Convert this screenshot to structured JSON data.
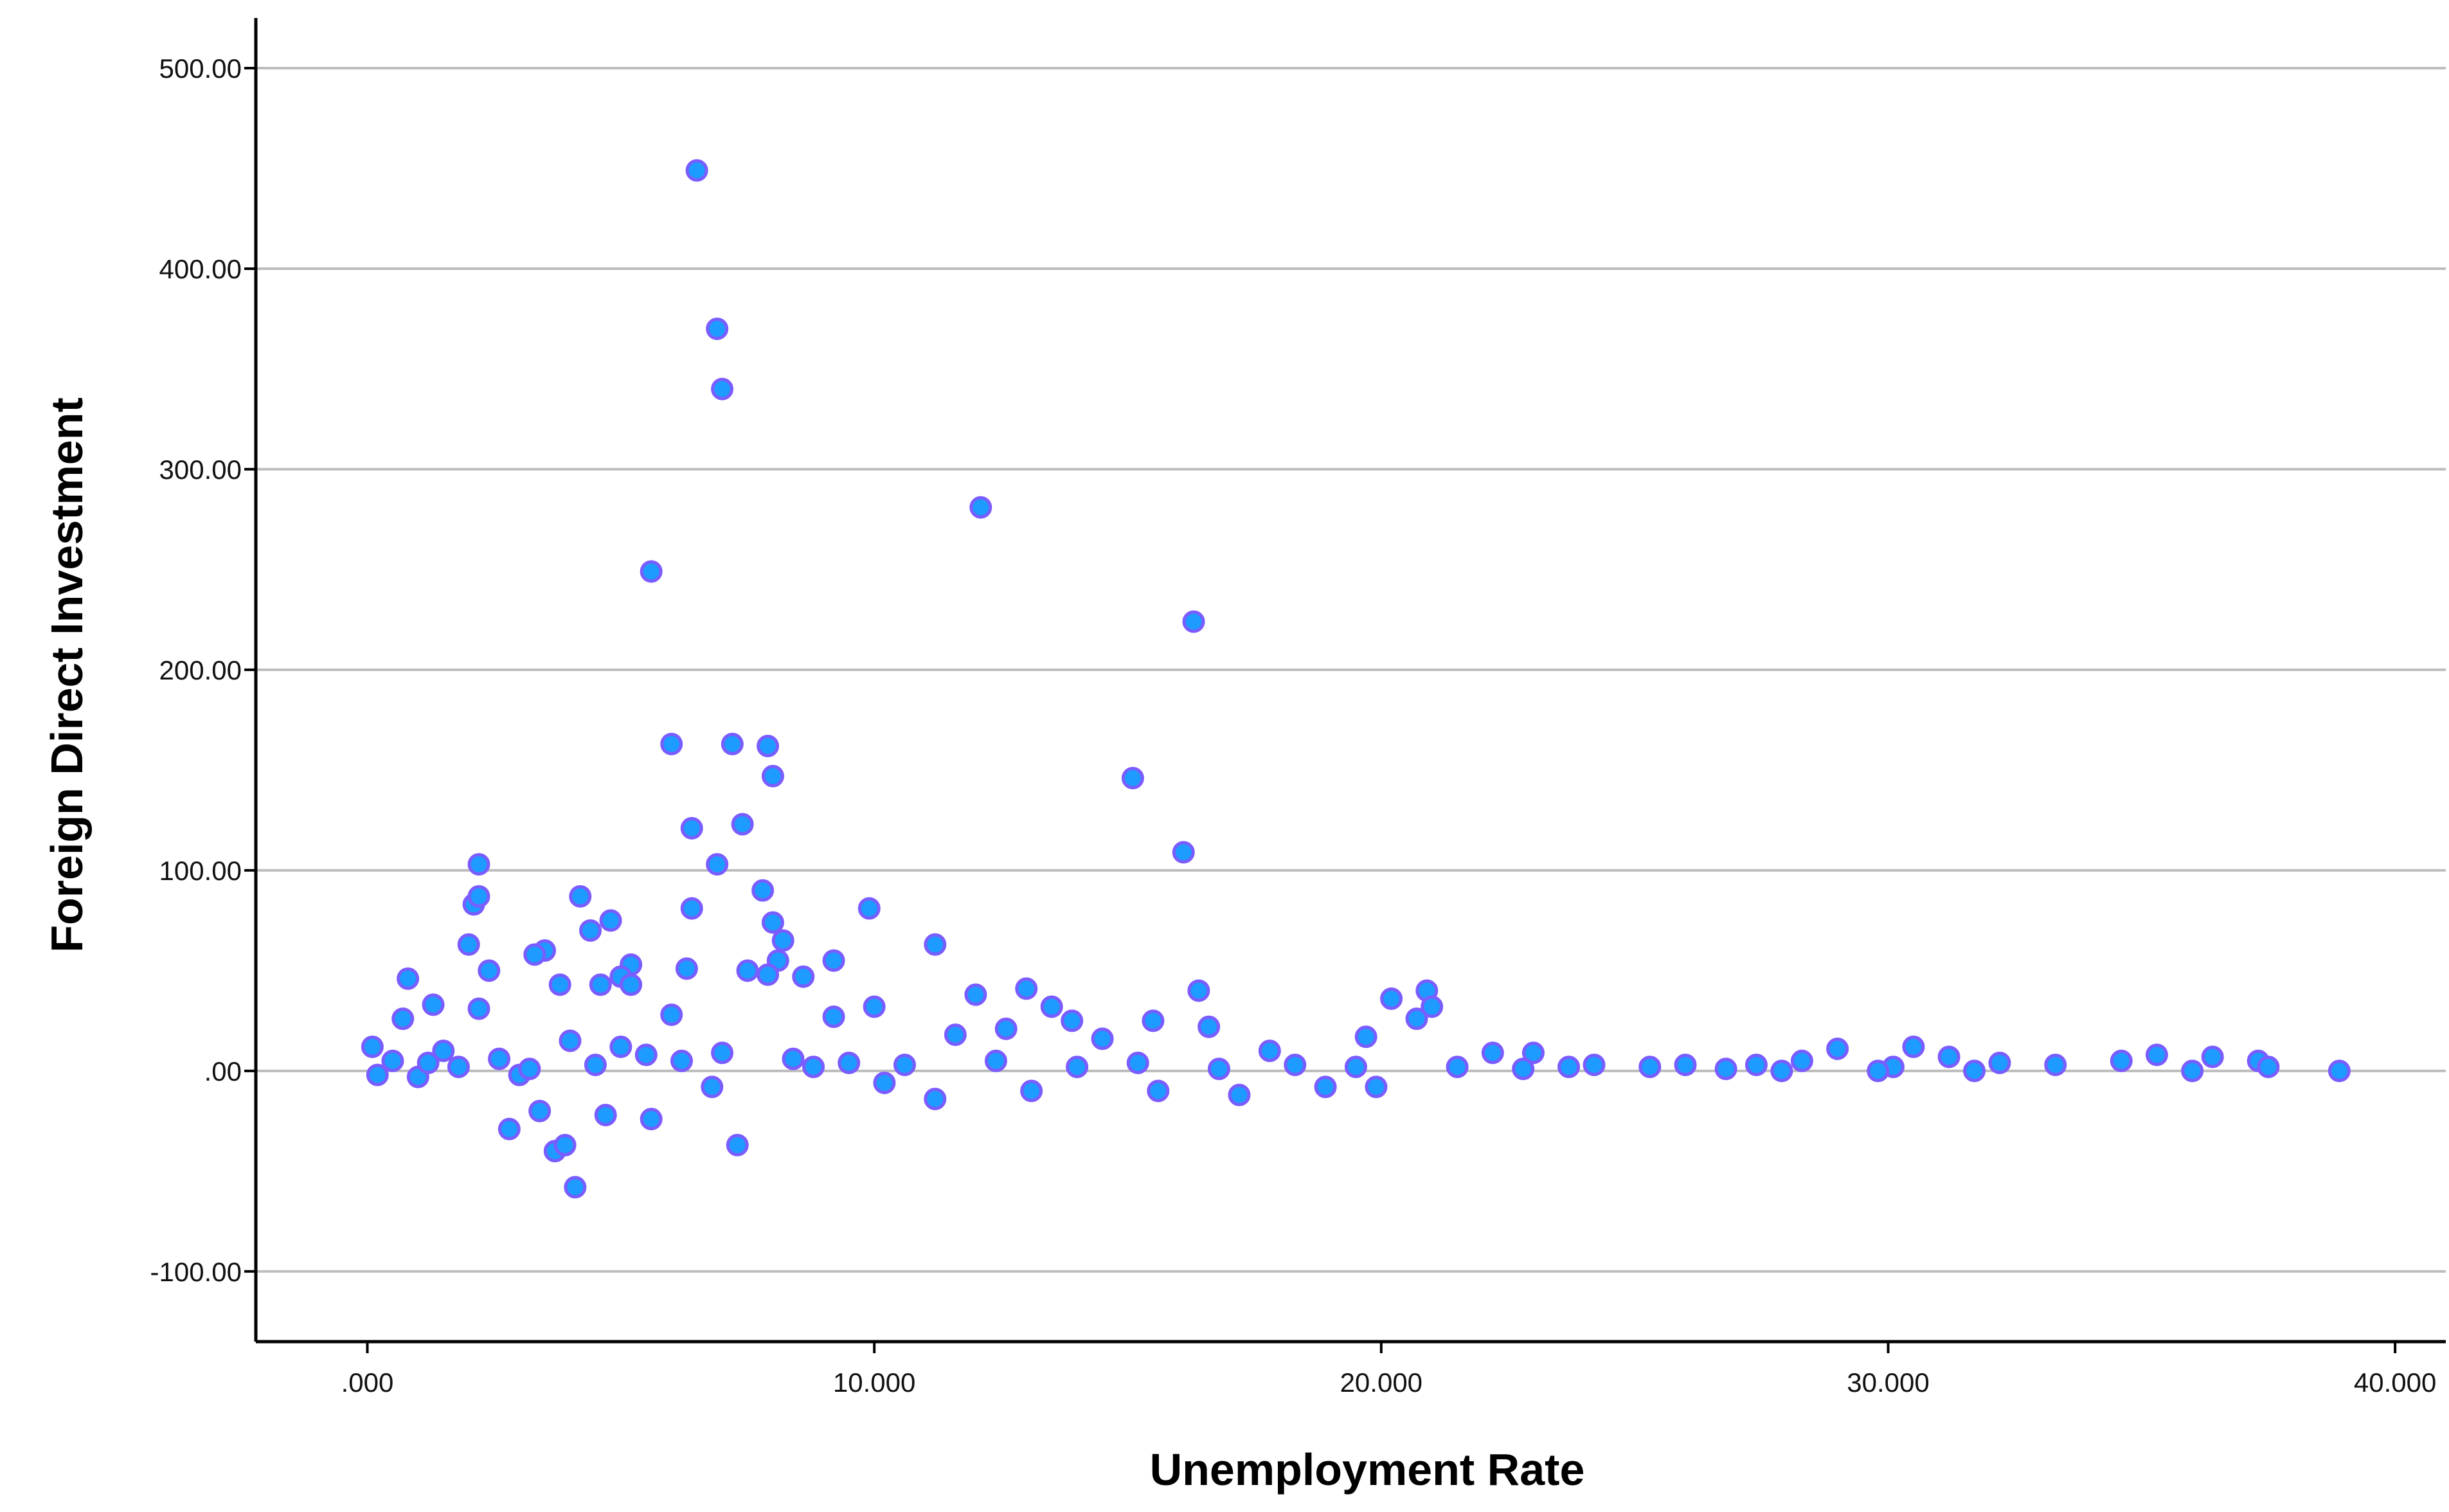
{
  "chart_data": {
    "type": "scatter",
    "title": "",
    "xlabel": "Unemployment Rate",
    "ylabel": "Foreign Direct Investment",
    "xlim": [
      -2.2,
      41
    ],
    "ylim": [
      -135,
      525
    ],
    "x_ticks": [
      0,
      10,
      20,
      30,
      40
    ],
    "x_tick_labels": [
      ".000",
      "10.000",
      "20.000",
      "30.000",
      "40.000"
    ],
    "y_ticks": [
      -100,
      0,
      100,
      200,
      300,
      400,
      500
    ],
    "y_tick_labels": [
      "-100.00",
      ".00",
      "100.00",
      "200.00",
      "300.00",
      "400.00",
      "500.00"
    ],
    "grid": {
      "horizontal": true,
      "vertical": false
    },
    "legend": "none",
    "marker_fill": "#1e9bff",
    "marker_edge": "#7a5cff",
    "points": [
      [
        6.5,
        449
      ],
      [
        6.9,
        370
      ],
      [
        7.0,
        340
      ],
      [
        12.1,
        281
      ],
      [
        5.6,
        249
      ],
      [
        16.3,
        224
      ],
      [
        6.0,
        163
      ],
      [
        7.2,
        163
      ],
      [
        7.9,
        162
      ],
      [
        8.0,
        147
      ],
      [
        15.1,
        146
      ],
      [
        6.4,
        121
      ],
      [
        7.4,
        123
      ],
      [
        16.1,
        109
      ],
      [
        2.2,
        103
      ],
      [
        6.9,
        103
      ],
      [
        7.8,
        90
      ],
      [
        2.1,
        83
      ],
      [
        2.2,
        87
      ],
      [
        4.2,
        87
      ],
      [
        6.4,
        81
      ],
      [
        9.9,
        81
      ],
      [
        4.8,
        75
      ],
      [
        8.0,
        74
      ],
      [
        4.4,
        70
      ],
      [
        8.2,
        65
      ],
      [
        2.0,
        63
      ],
      [
        11.2,
        63
      ],
      [
        3.5,
        60
      ],
      [
        3.3,
        58
      ],
      [
        9.2,
        55
      ],
      [
        5.2,
        53
      ],
      [
        8.1,
        55
      ],
      [
        2.4,
        50
      ],
      [
        6.3,
        51
      ],
      [
        7.5,
        50
      ],
      [
        5.0,
        47
      ],
      [
        8.6,
        47
      ],
      [
        0.8,
        46
      ],
      [
        7.9,
        48
      ],
      [
        3.8,
        43
      ],
      [
        4.6,
        43
      ],
      [
        5.2,
        43
      ],
      [
        13.0,
        41
      ],
      [
        16.4,
        40
      ],
      [
        20.9,
        40
      ],
      [
        12.0,
        38
      ],
      [
        20.2,
        36
      ],
      [
        1.3,
        33
      ],
      [
        2.2,
        31
      ],
      [
        10.0,
        32
      ],
      [
        13.5,
        32
      ],
      [
        21.0,
        32
      ],
      [
        6.0,
        28
      ],
      [
        9.2,
        27
      ],
      [
        13.9,
        25
      ],
      [
        0.7,
        26
      ],
      [
        15.5,
        25
      ],
      [
        20.7,
        26
      ],
      [
        16.6,
        22
      ],
      [
        12.6,
        21
      ],
      [
        19.7,
        17
      ],
      [
        14.5,
        16
      ],
      [
        11.6,
        18
      ],
      [
        17.8,
        10
      ],
      [
        22.2,
        9
      ],
      [
        23.0,
        9
      ],
      [
        29.0,
        11
      ],
      [
        30.5,
        12
      ],
      [
        35.3,
        8
      ],
      [
        28.3,
        5
      ],
      [
        31.2,
        7
      ],
      [
        33.3,
        3
      ],
      [
        34.6,
        5
      ],
      [
        36.4,
        7
      ],
      [
        37.3,
        5
      ],
      [
        32.2,
        4
      ],
      [
        30.1,
        2
      ],
      [
        26.0,
        3
      ],
      [
        27.4,
        3
      ],
      [
        24.2,
        3
      ],
      [
        25.3,
        2
      ],
      [
        36.0,
        0
      ],
      [
        37.5,
        2
      ],
      [
        38.9,
        0
      ],
      [
        31.7,
        0
      ],
      [
        29.8,
        0
      ],
      [
        27.9,
        0
      ],
      [
        26.8,
        1
      ],
      [
        0.1,
        12
      ],
      [
        0.2,
        -2
      ],
      [
        0.5,
        5
      ],
      [
        1.0,
        -3
      ],
      [
        1.5,
        10
      ],
      [
        3.0,
        -2
      ],
      [
        4.0,
        15
      ],
      [
        5.5,
        8
      ],
      [
        6.8,
        -8
      ],
      [
        8.8,
        2
      ],
      [
        10.2,
        -6
      ],
      [
        11.2,
        -14
      ],
      [
        13.1,
        -10
      ],
      [
        15.6,
        -10
      ],
      [
        17.2,
        -12
      ],
      [
        18.9,
        -8
      ],
      [
        19.9,
        -8
      ],
      [
        2.8,
        -29
      ],
      [
        3.4,
        -20
      ],
      [
        3.7,
        -40
      ],
      [
        3.9,
        -37
      ],
      [
        4.1,
        -58
      ],
      [
        4.7,
        -22
      ],
      [
        5.6,
        -24
      ],
      [
        7.3,
        -37
      ],
      [
        1.2,
        4
      ],
      [
        1.8,
        2
      ],
      [
        2.6,
        6
      ],
      [
        3.2,
        1
      ],
      [
        4.5,
        3
      ],
      [
        5.0,
        12
      ],
      [
        6.2,
        5
      ],
      [
        7.0,
        9
      ],
      [
        8.4,
        6
      ],
      [
        9.5,
        4
      ],
      [
        10.6,
        3
      ],
      [
        12.4,
        5
      ],
      [
        14.0,
        2
      ],
      [
        15.2,
        4
      ],
      [
        16.8,
        1
      ],
      [
        18.3,
        3
      ],
      [
        19.5,
        2
      ],
      [
        21.5,
        2
      ],
      [
        22.8,
        1
      ],
      [
        23.7,
        2
      ]
    ]
  }
}
